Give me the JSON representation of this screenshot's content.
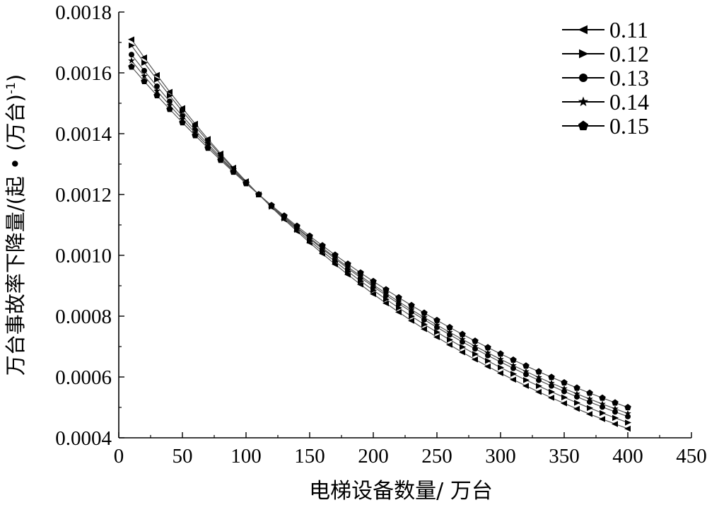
{
  "chart_data": {
    "type": "line",
    "xlabel": "电梯设备数量/ 万台",
    "ylabel": "万台事故率下降量/(起·(万台)⁻¹)",
    "ylabel_parts": {
      "main": "万台事故率下降量/(起 • (万台)",
      "sup": "-1",
      "close": ")"
    },
    "xlim": [
      0,
      450
    ],
    "ylim": [
      0.0004,
      0.0018
    ],
    "xticks": [
      0,
      50,
      100,
      150,
      200,
      250,
      300,
      350,
      400,
      450
    ],
    "yticks": [
      "0.0004",
      "0.0006",
      "0.0008",
      "0.0010",
      "0.0012",
      "0.0014",
      "0.0016",
      "0.0018"
    ],
    "legend_position": "top-right",
    "x": [
      10,
      20,
      30,
      40,
      50,
      60,
      70,
      80,
      90,
      100,
      110,
      120,
      130,
      140,
      150,
      160,
      170,
      180,
      190,
      200,
      210,
      220,
      230,
      240,
      250,
      260,
      270,
      280,
      290,
      300,
      310,
      320,
      330,
      340,
      350,
      360,
      370,
      380,
      390,
      400
    ],
    "series": [
      {
        "name": "0.11",
        "marker": "triangle-left",
        "y_start": 0.00171,
        "y_cross": 0.0012,
        "y_end": 0.00043
      },
      {
        "name": "0.12",
        "marker": "triangle-right",
        "y_start": 0.00169,
        "y_cross": 0.0012,
        "y_end": 0.00045
      },
      {
        "name": "0.13",
        "marker": "circle",
        "y_start": 0.00166,
        "y_cross": 0.0012,
        "y_end": 0.00047
      },
      {
        "name": "0.14",
        "marker": "star",
        "y_start": 0.00164,
        "y_cross": 0.0012,
        "y_end": 0.00048
      },
      {
        "name": "0.15",
        "marker": "pentagon",
        "y_start": 0.00162,
        "y_cross": 0.0012,
        "y_end": 0.0005
      }
    ]
  }
}
